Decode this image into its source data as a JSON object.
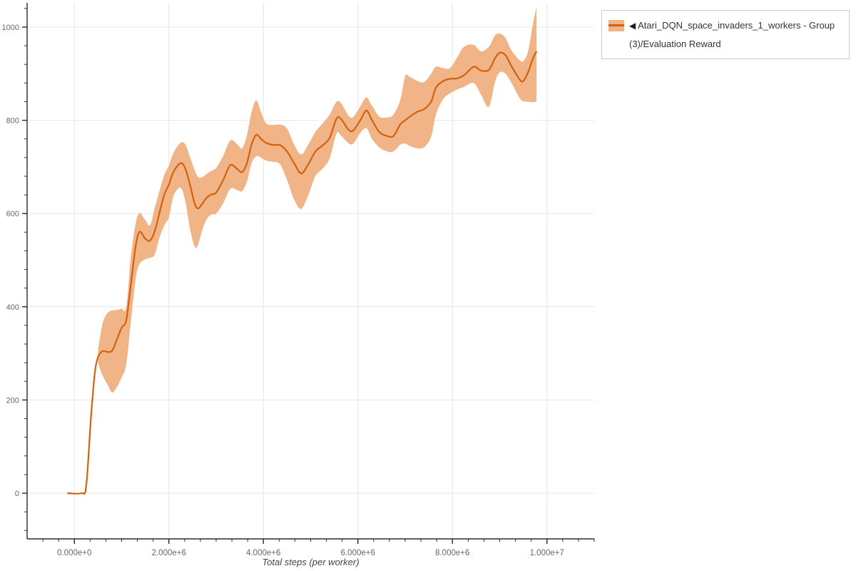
{
  "legend": {
    "marker": "◀",
    "label": "Atari_DQN_space_invaders_1_workers - Group(3)/Evaluation Reward"
  },
  "chart_data": {
    "type": "line",
    "title": "",
    "xlabel": "Total steps (per worker)",
    "ylabel": "",
    "grid": true,
    "legend_position": "top-right-outside",
    "xlim": [
      -1000000,
      11000000
    ],
    "ylim": [
      -98,
      1052
    ],
    "x_ticks": [
      {
        "value": 0,
        "label": "0.000e+0"
      },
      {
        "value": 2000000,
        "label": "2.000e+6"
      },
      {
        "value": 4000000,
        "label": "4.000e+6"
      },
      {
        "value": 6000000,
        "label": "6.000e+6"
      },
      {
        "value": 8000000,
        "label": "8.000e+6"
      },
      {
        "value": 10000000,
        "label": "1.000e+7"
      }
    ],
    "x_minor_step": 333333,
    "y_ticks": [
      {
        "value": 0,
        "label": "0"
      },
      {
        "value": 200,
        "label": "200"
      },
      {
        "value": 400,
        "label": "400"
      },
      {
        "value": 600,
        "label": "600"
      },
      {
        "value": 800,
        "label": "800"
      },
      {
        "value": 1000,
        "label": "1000"
      }
    ],
    "y_minor_step": 40,
    "colors": {
      "line": "#d2620e",
      "band": "#f1b487",
      "grid": "#e6e6e6",
      "axis": "#2b2b2b",
      "tick_label": "#666666",
      "axis_title": "#444444"
    },
    "series": [
      {
        "name": "Atari_DQN_space_invaders_1_workers - Group(3)/Evaluation Reward",
        "points": [
          [
            -150000,
            0,
            null,
            null
          ],
          [
            150000,
            0,
            null,
            null
          ],
          [
            250000,
            15,
            null,
            null
          ],
          [
            350000,
            160,
            null,
            null
          ],
          [
            430000,
            255,
            null,
            null
          ],
          [
            500000,
            292,
            278,
            308
          ],
          [
            600000,
            305,
            252,
            365
          ],
          [
            700000,
            303,
            233,
            386
          ],
          [
            800000,
            306,
            216,
            392
          ],
          [
            900000,
            330,
            228,
            393
          ],
          [
            1000000,
            355,
            248,
            396
          ],
          [
            1100000,
            372,
            278,
            400
          ],
          [
            1200000,
            452,
            372,
            512
          ],
          [
            1300000,
            532,
            462,
            580
          ],
          [
            1380000,
            561,
            492,
            601
          ],
          [
            1500000,
            546,
            502,
            586
          ],
          [
            1600000,
            542,
            505,
            575
          ],
          [
            1700000,
            562,
            512,
            612
          ],
          [
            1800000,
            601,
            548,
            648
          ],
          [
            1900000,
            640,
            574,
            682
          ],
          [
            2000000,
            662,
            592,
            703
          ],
          [
            2100000,
            690,
            638,
            731
          ],
          [
            2250000,
            708,
            655,
            752
          ],
          [
            2350000,
            696,
            625,
            748
          ],
          [
            2450000,
            660,
            565,
            720
          ],
          [
            2550000,
            620,
            528,
            692
          ],
          [
            2620000,
            611,
            534,
            678
          ],
          [
            2700000,
            620,
            562,
            678
          ],
          [
            2800000,
            634,
            588,
            685
          ],
          [
            2900000,
            641,
            598,
            692
          ],
          [
            3000000,
            645,
            600,
            698
          ],
          [
            3150000,
            672,
            622,
            724
          ],
          [
            3300000,
            704,
            653,
            757
          ],
          [
            3450000,
            695,
            650,
            748
          ],
          [
            3550000,
            689,
            648,
            740
          ],
          [
            3650000,
            708,
            668,
            768
          ],
          [
            3750000,
            748,
            708,
            818
          ],
          [
            3850000,
            769,
            723,
            843
          ],
          [
            3950000,
            760,
            720,
            818
          ],
          [
            4050000,
            752,
            714,
            794
          ],
          [
            4200000,
            747,
            711,
            790
          ],
          [
            4350000,
            747,
            706,
            791
          ],
          [
            4500000,
            733,
            672,
            782
          ],
          [
            4650000,
            708,
            630,
            748
          ],
          [
            4800000,
            686,
            610,
            727
          ],
          [
            4950000,
            706,
            640,
            748
          ],
          [
            5100000,
            733,
            680,
            775
          ],
          [
            5250000,
            746,
            696,
            793
          ],
          [
            5400000,
            762,
            718,
            812
          ],
          [
            5550000,
            804,
            772,
            840
          ],
          [
            5650000,
            802,
            766,
            836
          ],
          [
            5800000,
            780,
            751,
            810
          ],
          [
            5900000,
            778,
            750,
            807
          ],
          [
            6050000,
            800,
            773,
            830
          ],
          [
            6180000,
            821,
            783,
            849
          ],
          [
            6300000,
            800,
            760,
            831
          ],
          [
            6450000,
            775,
            742,
            808
          ],
          [
            6600000,
            767,
            734,
            806
          ],
          [
            6750000,
            766,
            733,
            812
          ],
          [
            6900000,
            792,
            748,
            845
          ],
          [
            7000000,
            800,
            750,
            895
          ],
          [
            7100000,
            808,
            745,
            893
          ],
          [
            7250000,
            818,
            740,
            885
          ],
          [
            7400000,
            824,
            742,
            882
          ],
          [
            7550000,
            840,
            765,
            900
          ],
          [
            7650000,
            870,
            812,
            915
          ],
          [
            7800000,
            884,
            845,
            912
          ],
          [
            7950000,
            889,
            858,
            912
          ],
          [
            8100000,
            890,
            866,
            935
          ],
          [
            8250000,
            897,
            872,
            958
          ],
          [
            8450000,
            915,
            880,
            962
          ],
          [
            8600000,
            907,
            856,
            948
          ],
          [
            8770000,
            908,
            829,
            958
          ],
          [
            8900000,
            933,
            882,
            982
          ],
          [
            9000000,
            945,
            903,
            986
          ],
          [
            9120000,
            940,
            900,
            977
          ],
          [
            9250000,
            916,
            880,
            950
          ],
          [
            9420000,
            888,
            848,
            929
          ],
          [
            9500000,
            884,
            841,
            927
          ],
          [
            9600000,
            903,
            840,
            948
          ],
          [
            9700000,
            932,
            839,
            1005
          ],
          [
            9780000,
            948,
            840,
            1043
          ]
        ]
      }
    ]
  }
}
